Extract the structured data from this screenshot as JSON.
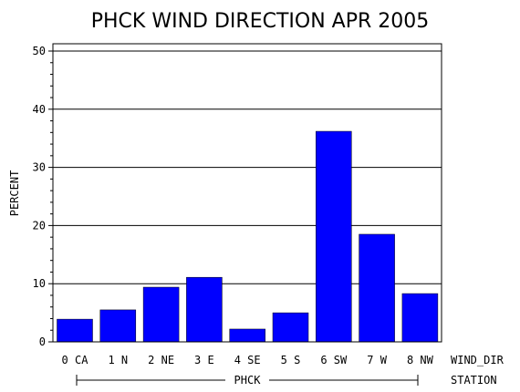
{
  "chart_data": {
    "type": "bar",
    "title": "PHCK WIND DIRECTION APR 2005",
    "ylabel": "PERCENT",
    "xlabel": "WIND_DIR",
    "group_axis_label": "STATION",
    "group_label": "PHCK",
    "categories": [
      "0 CA",
      "1 N",
      "2 NE",
      "3 E",
      "4 SE",
      "5 S",
      "6 SW",
      "7 W",
      "8 NW"
    ],
    "values": [
      3.9,
      5.5,
      9.4,
      11.1,
      2.2,
      5.0,
      36.2,
      18.5,
      8.3
    ],
    "ylim": [
      0,
      50
    ],
    "yticks": [
      "0",
      "10",
      "20",
      "30",
      "40",
      "50"
    ],
    "grid": true,
    "bar_color": "#0000ff",
    "legend": "none"
  }
}
